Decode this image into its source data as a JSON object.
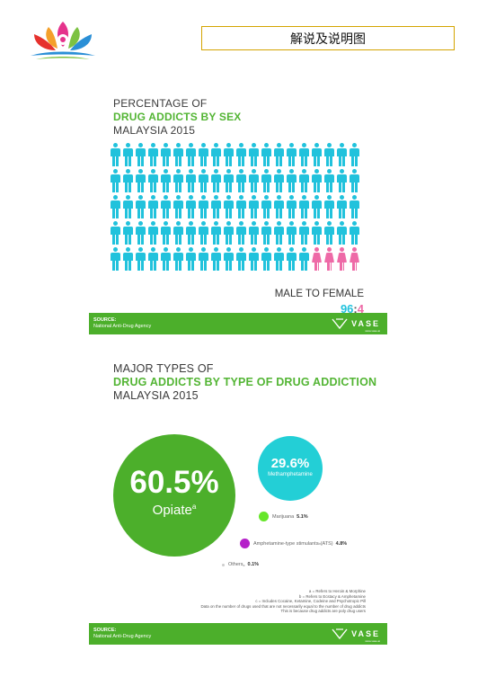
{
  "header": {
    "title": "解说及说明图"
  },
  "panel1": {
    "heading": {
      "line1": "PERCENTAGE OF",
      "line2": "DRUG ADDICTS BY SEX",
      "line3": "MALAYSIA 2015"
    },
    "pictogram": {
      "male_count": 96,
      "female_count": 4,
      "male_color": "#21c2dc",
      "female_color": "#ee6aa7",
      "columns": 20,
      "rows": 5
    },
    "ratio_label": "MALE TO FEMALE",
    "ratio": {
      "male": "96",
      "sep": ":",
      "female": "4"
    },
    "source": {
      "label": "SOURCE:",
      "value": "National Anti-Drug Agency"
    },
    "brand": "VASE",
    "brand_sub": "www.vase.ai"
  },
  "panel2": {
    "heading": {
      "line1": "MAJOR TYPES OF",
      "line2": "DRUG ADDICTS BY TYPE OF DRUG ADDICTION",
      "line3": "MALAYSIA 2015"
    },
    "opiate": {
      "value": "60.5%",
      "label": "Opiate",
      "sup": "a",
      "color": "#4caf2b"
    },
    "meth": {
      "value": "29.6%",
      "label": "Methamphetamine",
      "color": "#23cfd6"
    },
    "marijuana": {
      "label": "Marijuana",
      "value": "5.1%",
      "color": "#66e62a"
    },
    "ats": {
      "label": "Amphetamine-type stimulants",
      "sup": "b",
      "suffix": " (ATS)",
      "value": "4.8%",
      "color": "#b521c9"
    },
    "others": {
      "label": "Others",
      "sup": "c",
      "value": "0.1%",
      "color": "#cccccc"
    },
    "notes": [
      "a = Refers to Heroin & Morphine",
      "b = Refers to Ecstacy & Amphetamine",
      "c = Includes Cocaine, Ketamine, Codeine and Psychotropic Pill",
      "Data on the number of drugs used that are not necessarily equal to the number of drug addicts",
      "This is because drug addicts are poly drug users"
    ],
    "source": {
      "label": "SOURCE:",
      "value": "National Anti-Drug Agency"
    },
    "brand": "VASE",
    "brand_sub": "www.vase.ai"
  }
}
